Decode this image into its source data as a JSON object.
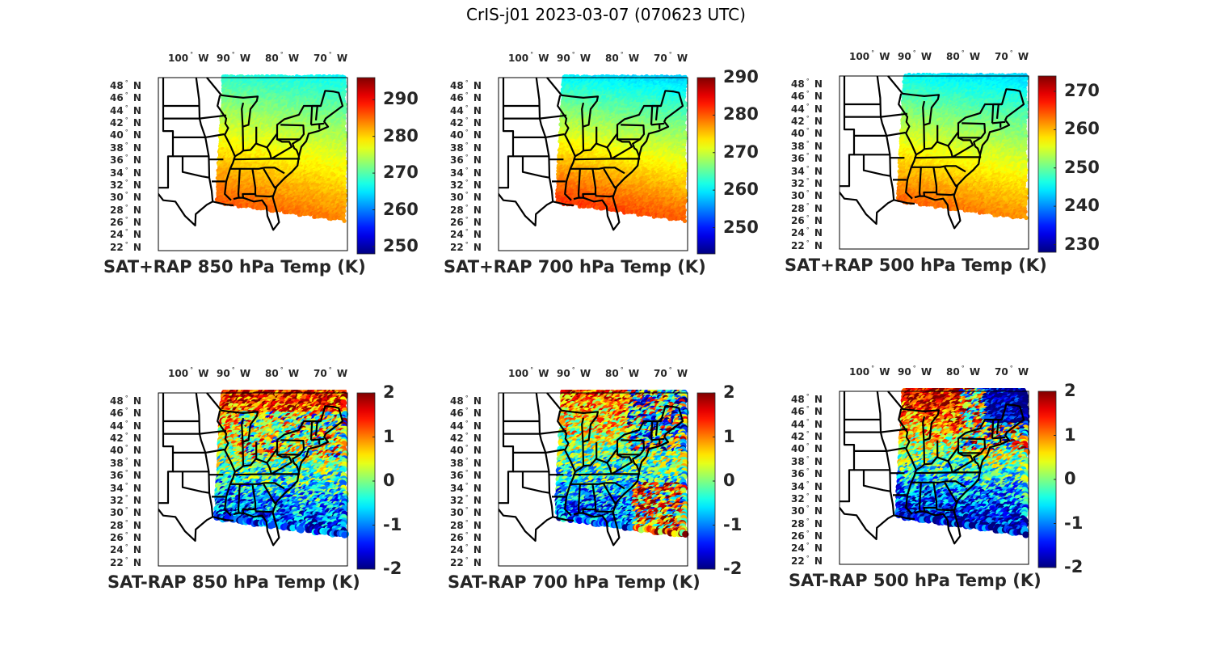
{
  "figure": {
    "title": "CrIS-j01 2023-03-07 (070623 UTC)"
  },
  "chart_data": [
    {
      "type": "heatmap",
      "title": "SAT+RAP 850 hPa Temp (K)",
      "lon_ticks": [
        "100",
        "90",
        "80",
        "70"
      ],
      "lon_suffix": "W",
      "lat_ticks": [
        "48",
        "46",
        "44",
        "42",
        "40",
        "38",
        "36",
        "34",
        "32",
        "30",
        "28",
        "26",
        "24",
        "22"
      ],
      "lat_suffix": "N",
      "colormap": "jet",
      "clim": [
        248,
        296
      ],
      "colorbar_ticks": [
        "290",
        "280",
        "270",
        "260",
        "250"
      ],
      "colorbar_tick_values": [
        290,
        280,
        270,
        260,
        250
      ],
      "field": "total",
      "north_value": 266,
      "south_value": 284,
      "west_warm_bias": 2
    },
    {
      "type": "heatmap",
      "title": "SAT+RAP 700 hPa Temp (K)",
      "lon_ticks": [
        "100",
        "90",
        "80",
        "70"
      ],
      "lon_suffix": "W",
      "lat_ticks": [
        "48",
        "46",
        "44",
        "42",
        "40",
        "38",
        "36",
        "34",
        "32",
        "30",
        "28",
        "26",
        "24",
        "22"
      ],
      "lat_suffix": "N",
      "colormap": "jet",
      "clim": [
        243,
        290
      ],
      "colorbar_ticks": [
        "290",
        "280",
        "270",
        "260",
        "250"
      ],
      "colorbar_tick_values": [
        290,
        280,
        270,
        260,
        250
      ],
      "field": "total",
      "north_value": 258,
      "south_value": 280,
      "west_warm_bias": 2
    },
    {
      "type": "heatmap",
      "title": "SAT+RAP 500 hPa Temp (K)",
      "lon_ticks": [
        "100",
        "90",
        "80",
        "70"
      ],
      "lon_suffix": "W",
      "lat_ticks": [
        "48",
        "46",
        "44",
        "42",
        "40",
        "38",
        "36",
        "34",
        "32",
        "30",
        "28",
        "26",
        "24",
        "22"
      ],
      "lat_suffix": "N",
      "colormap": "jet",
      "clim": [
        228,
        274
      ],
      "colorbar_ticks": [
        "270",
        "260",
        "250",
        "240",
        "230"
      ],
      "colorbar_tick_values": [
        270,
        260,
        250,
        240,
        230
      ],
      "field": "total",
      "north_value": 243,
      "south_value": 262,
      "west_warm_bias": 2
    },
    {
      "type": "heatmap",
      "title": "SAT-RAP 850 hPa Temp (K)",
      "lon_ticks": [
        "100",
        "90",
        "80",
        "70"
      ],
      "lon_suffix": "W",
      "lat_ticks": [
        "48",
        "46",
        "44",
        "42",
        "40",
        "38",
        "36",
        "34",
        "32",
        "30",
        "28",
        "26",
        "24",
        "22"
      ],
      "lat_suffix": "N",
      "colormap": "jet",
      "clim": [
        -2,
        2
      ],
      "colorbar_ticks": [
        "2",
        "1",
        "0",
        "-1",
        "-2"
      ],
      "colorbar_tick_values": [
        2,
        1,
        0,
        -1,
        -2
      ],
      "field": "diff",
      "north_value": 1.6,
      "south_value": -1.4,
      "west_warm_bias": 0
    },
    {
      "type": "heatmap",
      "title": "SAT-RAP 700 hPa Temp (K)",
      "lon_ticks": [
        "100",
        "90",
        "80",
        "70"
      ],
      "lon_suffix": "W",
      "lat_ticks": [
        "48",
        "46",
        "44",
        "42",
        "40",
        "38",
        "36",
        "34",
        "32",
        "30",
        "28",
        "26",
        "24",
        "22"
      ],
      "lat_suffix": "N",
      "colormap": "jet",
      "clim": [
        -2,
        2
      ],
      "colorbar_ticks": [
        "2",
        "1",
        "0",
        "-1",
        "-2"
      ],
      "colorbar_tick_values": [
        2,
        1,
        0,
        -1,
        -2
      ],
      "field": "diff",
      "north_value": 1.2,
      "south_value": -1.3,
      "west_warm_bias": 0
    },
    {
      "type": "heatmap",
      "title": "SAT-RAP 500 hPa Temp (K)",
      "lon_ticks": [
        "100",
        "90",
        "80",
        "70"
      ],
      "lon_suffix": "W",
      "lat_ticks": [
        "48",
        "46",
        "44",
        "42",
        "40",
        "38",
        "36",
        "34",
        "32",
        "30",
        "28",
        "26",
        "24",
        "22"
      ],
      "lat_suffix": "N",
      "colormap": "jet",
      "clim": [
        -2,
        2
      ],
      "colorbar_ticks": [
        "2",
        "1",
        "0",
        "-1",
        "-2"
      ],
      "colorbar_tick_values": [
        2,
        1,
        0,
        -1,
        -2
      ],
      "field": "diff",
      "north_value": 1.9,
      "south_value": -1.8,
      "west_warm_bias": 0
    }
  ]
}
